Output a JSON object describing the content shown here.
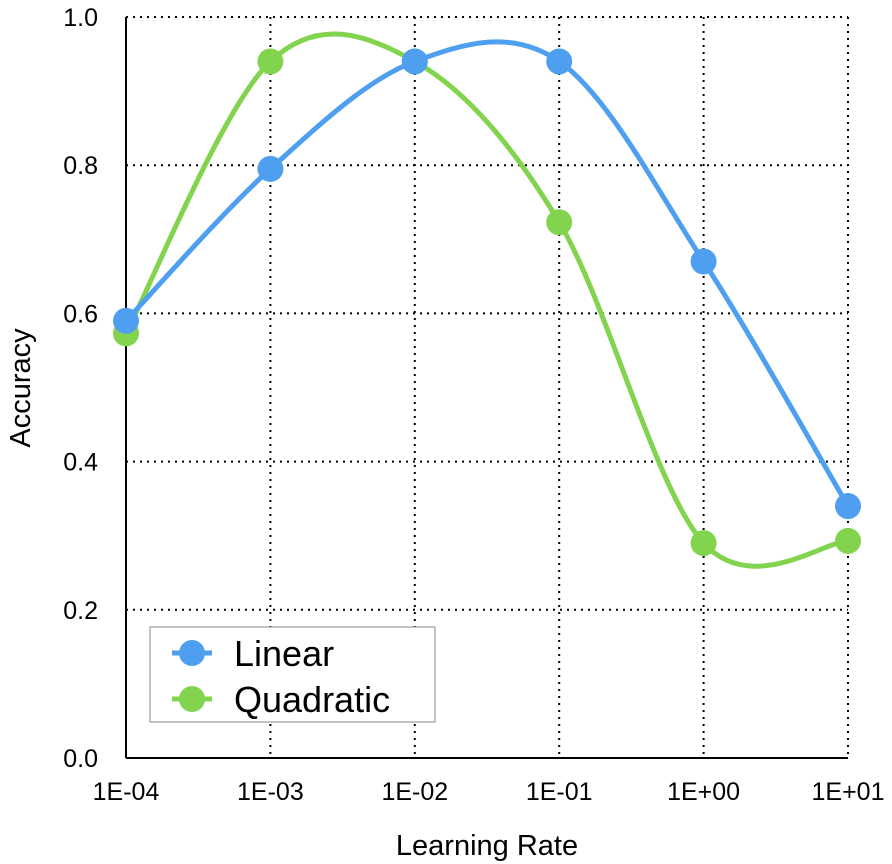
{
  "chart_data": {
    "type": "line",
    "xlabel": "Learning Rate",
    "ylabel": "Accuracy",
    "x": [
      "1E-04",
      "1E-03",
      "1E-02",
      "1E-01",
      "1E+00",
      "1E+01"
    ],
    "yticks": [
      "0.0",
      "0.2",
      "0.4",
      "0.6",
      "0.8",
      "1.0"
    ],
    "ylim": [
      0,
      1
    ],
    "grid": true,
    "legend": "bottom-left",
    "smooth": true,
    "series": [
      {
        "name": "Linear",
        "color": "#4e9ff0",
        "values": [
          0.59,
          0.795,
          0.94,
          0.94,
          0.67,
          0.34
        ]
      },
      {
        "name": "Quadratic",
        "color": "#82d44e",
        "values": [
          0.573,
          0.94,
          0.94,
          0.723,
          0.29,
          0.293
        ]
      }
    ]
  }
}
